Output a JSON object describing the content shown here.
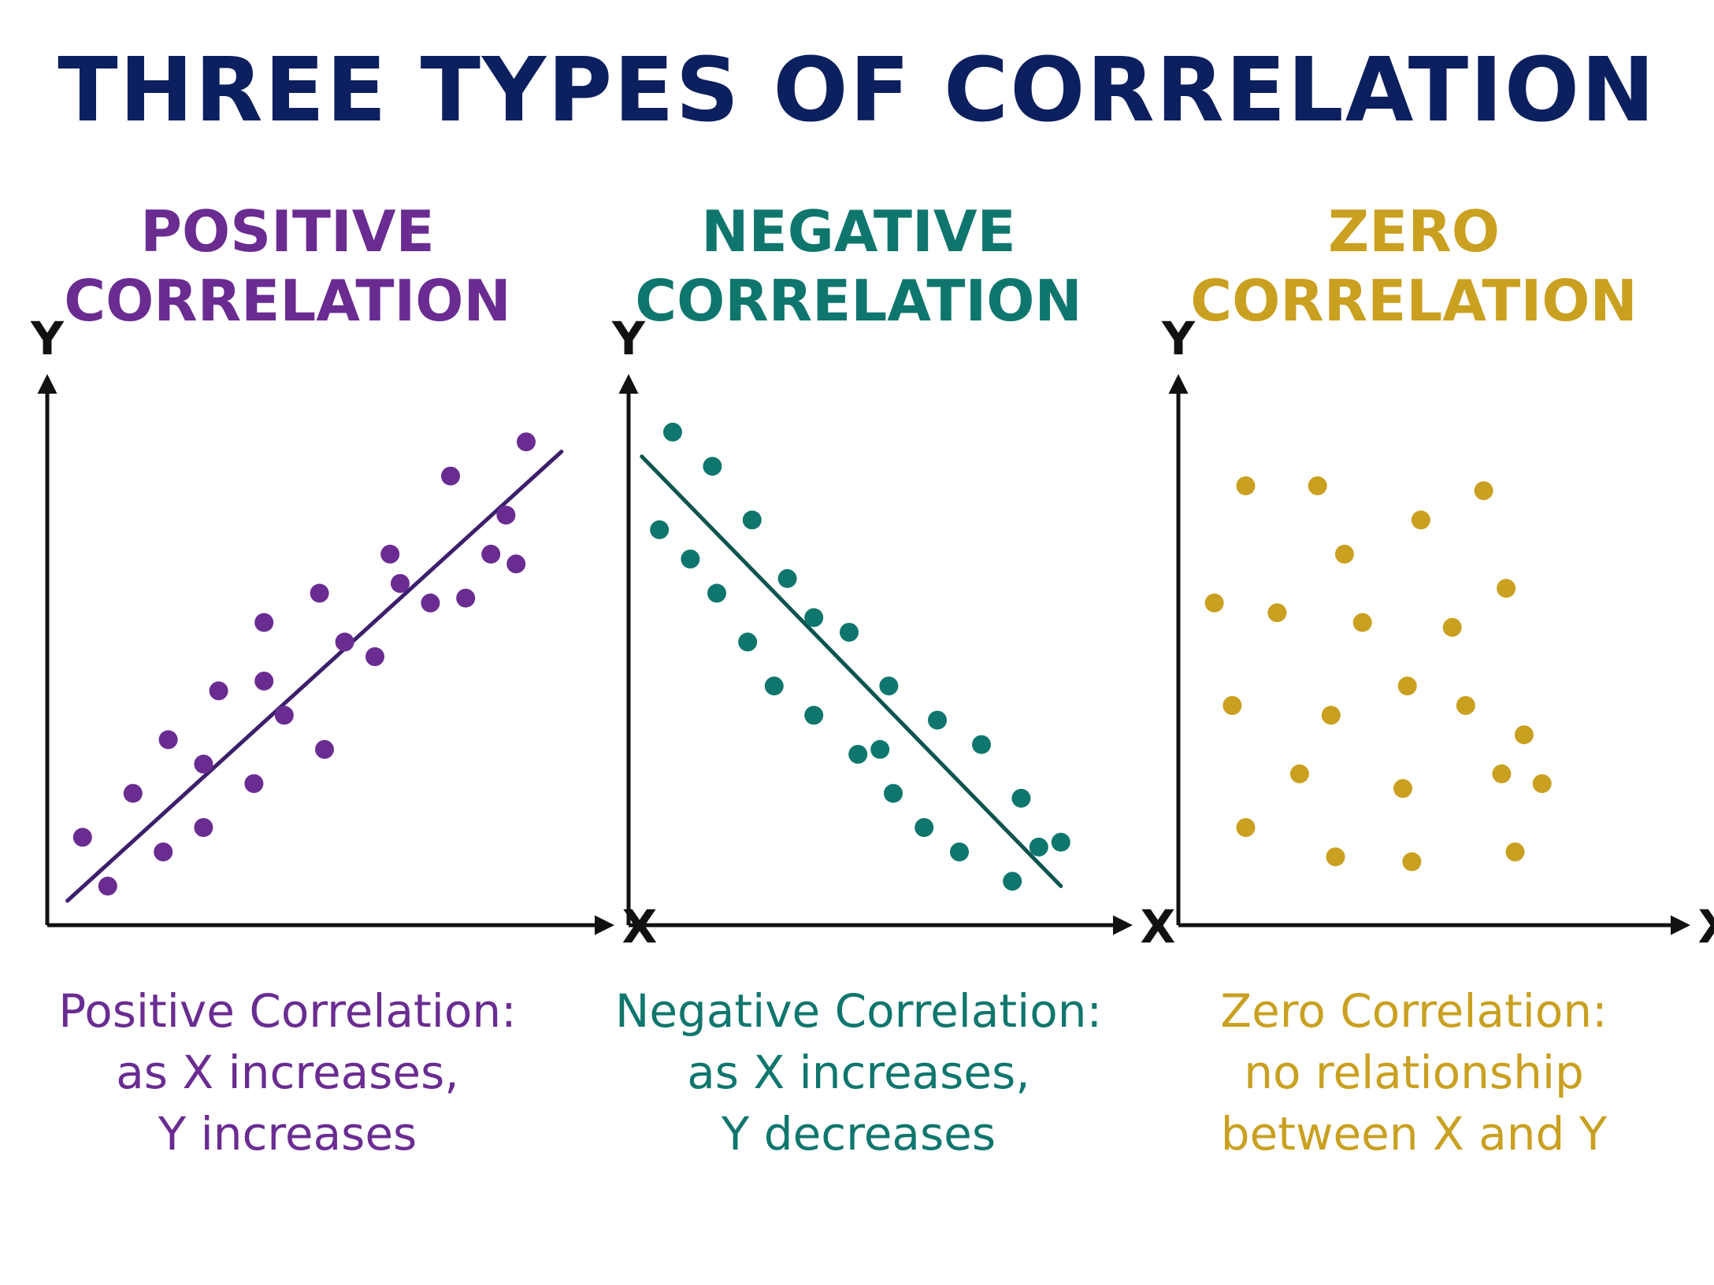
{
  "title": "THREE TYPES OF CORRELATION",
  "colors": {
    "title": "#0c1f5e",
    "positive": "#6a2c91",
    "negative": "#0f766e",
    "zero": "#c9a020",
    "axis": "#111111"
  },
  "panels": [
    {
      "title_line1": "POSITIVE",
      "title_line2": "CORRELATION",
      "caption_line1": "Positive Correlation:",
      "caption_line2": "as X increases,",
      "caption_line3": "Y increases"
    },
    {
      "title_line1": "NEGATIVE",
      "title_line2": "CORRELATION",
      "caption_line1": "Negative Correlation:",
      "caption_line2": "as X increases,",
      "caption_line3": "Y decreases"
    },
    {
      "title_line1": "ZERO",
      "title_line2": "CORRELATION",
      "caption_line1": "Zero Correlation:",
      "caption_line2": "no relationship",
      "caption_line3": "between X and Y"
    }
  ],
  "chart_data": [
    {
      "type": "scatter",
      "title": "POSITIVE CORRELATION",
      "xlabel": "X",
      "ylabel": "Y",
      "xlim": [
        0,
        100
      ],
      "ylim": [
        0,
        100
      ],
      "color": "#6a2c91",
      "points": [
        [
          7,
          18
        ],
        [
          12,
          8
        ],
        [
          17,
          27
        ],
        [
          23,
          15
        ],
        [
          24,
          38
        ],
        [
          31,
          33
        ],
        [
          31,
          20
        ],
        [
          34,
          48
        ],
        [
          41,
          29
        ],
        [
          43,
          62
        ],
        [
          43,
          50
        ],
        [
          47,
          43
        ],
        [
          55,
          36
        ],
        [
          54,
          68
        ],
        [
          59,
          58
        ],
        [
          65,
          55
        ],
        [
          68,
          76
        ],
        [
          70,
          70
        ],
        [
          76,
          66
        ],
        [
          80,
          92
        ],
        [
          83,
          67
        ],
        [
          88,
          76
        ],
        [
          91,
          84
        ],
        [
          93,
          74
        ],
        [
          95,
          99
        ]
      ],
      "trend_line": [
        [
          4,
          5
        ],
        [
          102,
          97
        ]
      ]
    },
    {
      "type": "scatter",
      "title": "NEGATIVE CORRELATION",
      "xlabel": "X",
      "ylabel": "Y",
      "xlim": [
        0,
        100
      ],
      "ylim": [
        0,
        100
      ],
      "color": "#0f766e",
      "points": [
        [
          7,
          81
        ],
        [
          10,
          101
        ],
        [
          14,
          75
        ],
        [
          19,
          94
        ],
        [
          20,
          68
        ],
        [
          27,
          58
        ],
        [
          28,
          83
        ],
        [
          33,
          49
        ],
        [
          36,
          71
        ],
        [
          42,
          43
        ],
        [
          42,
          63
        ],
        [
          50,
          60
        ],
        [
          52,
          35
        ],
        [
          57,
          36
        ],
        [
          59,
          49
        ],
        [
          60,
          27
        ],
        [
          67,
          20
        ],
        [
          70,
          42
        ],
        [
          75,
          15
        ],
        [
          80,
          37
        ],
        [
          87,
          9
        ],
        [
          89,
          26
        ],
        [
          93,
          16
        ],
        [
          98,
          17
        ]
      ],
      "trend_line": [
        [
          3,
          96
        ],
        [
          98,
          8
        ]
      ]
    },
    {
      "type": "scatter",
      "title": "ZERO CORRELATION",
      "xlabel": "X",
      "ylabel": "Y",
      "xlim": [
        0,
        100
      ],
      "ylim": [
        0,
        100
      ],
      "color": "#c9a020",
      "points": [
        [
          8,
          66
        ],
        [
          12,
          45
        ],
        [
          15,
          90
        ],
        [
          15,
          20
        ],
        [
          22,
          64
        ],
        [
          27,
          31
        ],
        [
          31,
          90
        ],
        [
          34,
          43
        ],
        [
          35,
          14
        ],
        [
          37,
          76
        ],
        [
          41,
          62
        ],
        [
          50,
          28
        ],
        [
          51,
          49
        ],
        [
          52,
          13
        ],
        [
          54,
          83
        ],
        [
          61,
          61
        ],
        [
          64,
          45
        ],
        [
          68,
          89
        ],
        [
          72,
          31
        ],
        [
          75,
          15
        ],
        [
          73,
          69
        ],
        [
          77,
          39
        ],
        [
          81,
          29
        ]
      ]
    }
  ]
}
